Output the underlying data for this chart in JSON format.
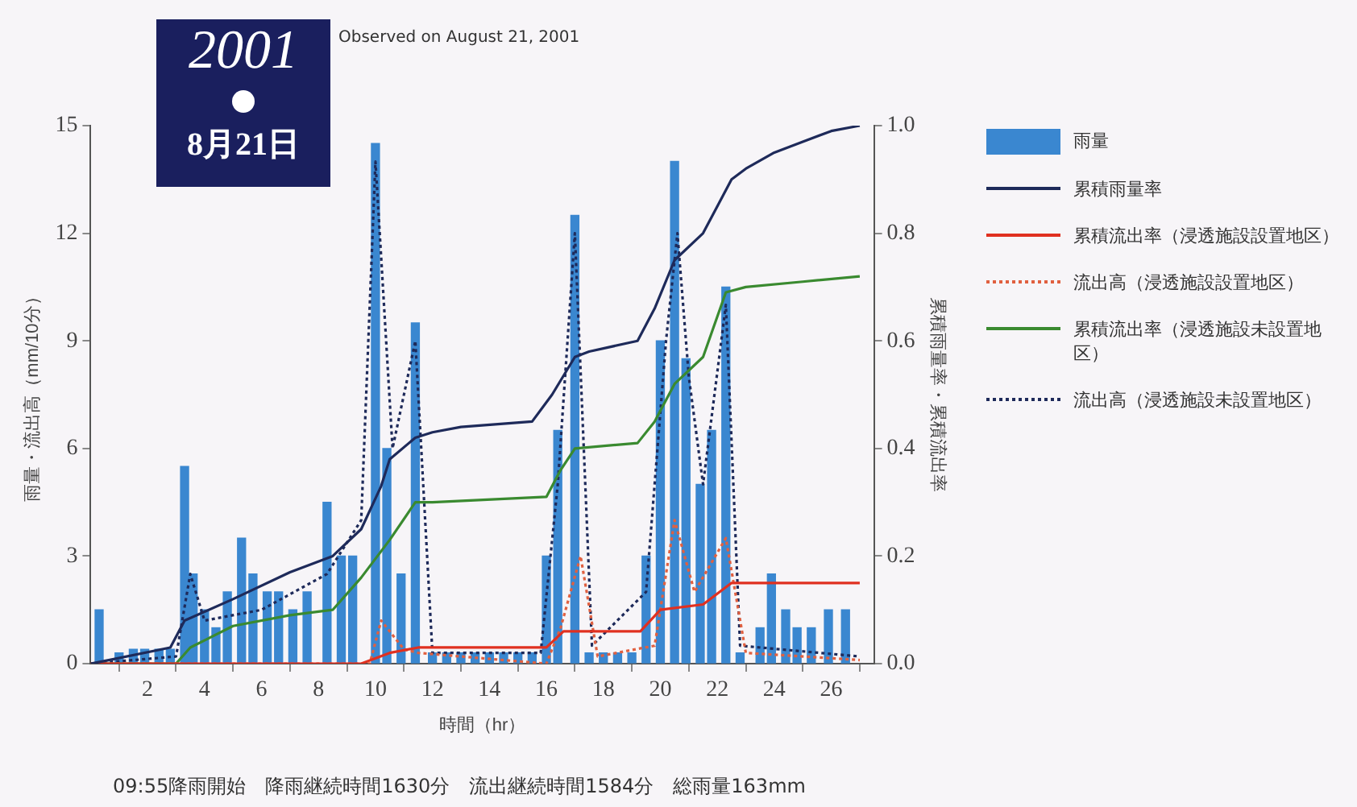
{
  "chart_data": {
    "type": "bar",
    "title": "2001",
    "subtitle": "8月21日",
    "xlabel": "時間（hr）",
    "ylabel": "雨量・流出高（mm/10分）",
    "y2label": "累積雨量率・累積流出率",
    "annotations": [
      "Observed on August 21, 2001",
      "09:55降雨開始　降雨継続時間1630分　流出継続時間1584分　総雨量163mm"
    ],
    "xlim": [
      0,
      27.5
    ],
    "xticks": [
      2,
      4,
      6,
      8,
      10,
      12,
      14,
      16,
      18,
      20,
      22,
      24,
      26
    ],
    "ylim": [
      0,
      15
    ],
    "yticks": [
      0,
      3,
      6,
      9,
      12,
      15
    ],
    "y2lim": [
      0,
      1
    ],
    "y2ticks": [
      {
        "value": 0,
        "label": "0.0"
      },
      {
        "value": 0.2,
        "label": "0.2"
      },
      {
        "value": 0.4,
        "label": "0.4"
      },
      {
        "value": 0.6,
        "label": "0.6"
      },
      {
        "value": 0.8,
        "label": "0.8"
      },
      {
        "value": 1,
        "label": "1.0"
      }
    ],
    "legend": "right",
    "grid": false,
    "marker": "none",
    "series": [
      {
        "name": "雨量",
        "color": "#3a87d0",
        "x": [
          0.3,
          1.0,
          1.5,
          1.9,
          2.4,
          2.8,
          3.3,
          3.6,
          4.0,
          4.4,
          4.8,
          5.3,
          5.7,
          6.2,
          6.6,
          7.1,
          7.6,
          8.3,
          8.8,
          9.2,
          10.0,
          10.4,
          10.9,
          11.4,
          12.0,
          12.5,
          13.0,
          13.5,
          14.0,
          14.5,
          15.0,
          15.5,
          16.0,
          16.4,
          17.0,
          17.5,
          18.0,
          18.5,
          19.0,
          19.5,
          20.0,
          20.5,
          20.9,
          21.4,
          21.8,
          22.3,
          22.8,
          23.5,
          23.9,
          24.4,
          24.8,
          25.3,
          25.9,
          26.5
        ],
        "values": [
          1.5,
          0.3,
          0.4,
          0.4,
          0.4,
          0.4,
          5.5,
          2.5,
          1.5,
          1.0,
          2.0,
          3.5,
          2.5,
          2.0,
          2.0,
          1.5,
          2.0,
          4.5,
          3.0,
          3.0,
          14.5,
          6.0,
          2.5,
          9.5,
          0.3,
          0.3,
          0.3,
          0.3,
          0.3,
          0.3,
          0.3,
          0.3,
          3.0,
          6.5,
          12.5,
          0.3,
          0.3,
          0.3,
          0.3,
          3.0,
          9.0,
          14.0,
          8.5,
          5.0,
          6.5,
          10.5,
          0.3,
          1.0,
          2.5,
          1.5,
          1.0,
          1.0,
          1.5,
          1.5
        ]
      },
      {
        "name": "累積雨量率",
        "type": "line",
        "axis": "y2",
        "color": "#1e2a5a",
        "line_style": "solid",
        "x": [
          0,
          0.5,
          2.8,
          3.3,
          5,
          7,
          8.5,
          9.5,
          10.2,
          10.5,
          11.4,
          12,
          13,
          15.5,
          16.2,
          17,
          17.5,
          19.2,
          19.8,
          20.5,
          21.5,
          22.5,
          23,
          24,
          25,
          26,
          27
        ],
        "values": [
          0,
          0.005,
          0.03,
          0.08,
          0.12,
          0.17,
          0.2,
          0.25,
          0.33,
          0.38,
          0.42,
          0.43,
          0.44,
          0.45,
          0.5,
          0.57,
          0.58,
          0.6,
          0.66,
          0.75,
          0.8,
          0.9,
          0.92,
          0.95,
          0.97,
          0.99,
          1.0
        ]
      },
      {
        "name": "累積流出率（浸透施設設置地区）",
        "type": "line",
        "axis": "y2",
        "color": "#e03020",
        "line_style": "solid",
        "x": [
          0,
          9.5,
          10.5,
          11.5,
          16,
          16.6,
          19.3,
          20,
          21.5,
          22.5,
          27
        ],
        "values": [
          0,
          0,
          0.02,
          0.03,
          0.03,
          0.06,
          0.06,
          0.1,
          0.11,
          0.15,
          0.15
        ]
      },
      {
        "name": "流出高（浸透施設設置地区）",
        "type": "line",
        "color": "#e06040",
        "line_style": "dotted",
        "x": [
          0,
          9.8,
          10.2,
          11,
          11.5,
          16,
          16.5,
          17.2,
          17.8,
          19.8,
          20.5,
          21.2,
          22.3,
          23,
          27
        ],
        "values": [
          0,
          0,
          1.2,
          0.4,
          0.3,
          0,
          1.0,
          3.0,
          0.2,
          0.5,
          4.0,
          2.0,
          3.5,
          0.3,
          0.1
        ]
      },
      {
        "name": "累積流出率（浸透施設未設置地区）",
        "type": "line",
        "axis": "y2",
        "color": "#3a8a30",
        "line_style": "solid",
        "x": [
          0,
          3,
          3.5,
          5,
          7,
          8.5,
          9.5,
          10.5,
          11.4,
          12,
          16,
          16.5,
          17,
          19.2,
          19.8,
          20.5,
          21.5,
          22.3,
          23,
          25,
          27
        ],
        "values": [
          0,
          0,
          0.03,
          0.07,
          0.09,
          0.1,
          0.16,
          0.23,
          0.3,
          0.3,
          0.31,
          0.36,
          0.4,
          0.41,
          0.45,
          0.52,
          0.57,
          0.69,
          0.7,
          0.71,
          0.72
        ]
      },
      {
        "name": "流出高（浸透施設未設置地区）",
        "type": "line",
        "color": "#1e2a5a",
        "line_style": "dotted",
        "x": [
          0,
          3,
          3.5,
          4,
          6,
          8.3,
          9.5,
          10,
          10.6,
          11.4,
          12,
          15.8,
          16.4,
          17,
          17.6,
          19.5,
          20.2,
          20.6,
          21,
          21.5,
          22.3,
          22.8,
          27
        ],
        "values": [
          0,
          0.2,
          2.5,
          1.2,
          1.5,
          2.5,
          4,
          14,
          6,
          9,
          0.3,
          0.3,
          5,
          12,
          0.5,
          2,
          9,
          12,
          8,
          5,
          10,
          0.5,
          0.2
        ]
      }
    ]
  }
}
